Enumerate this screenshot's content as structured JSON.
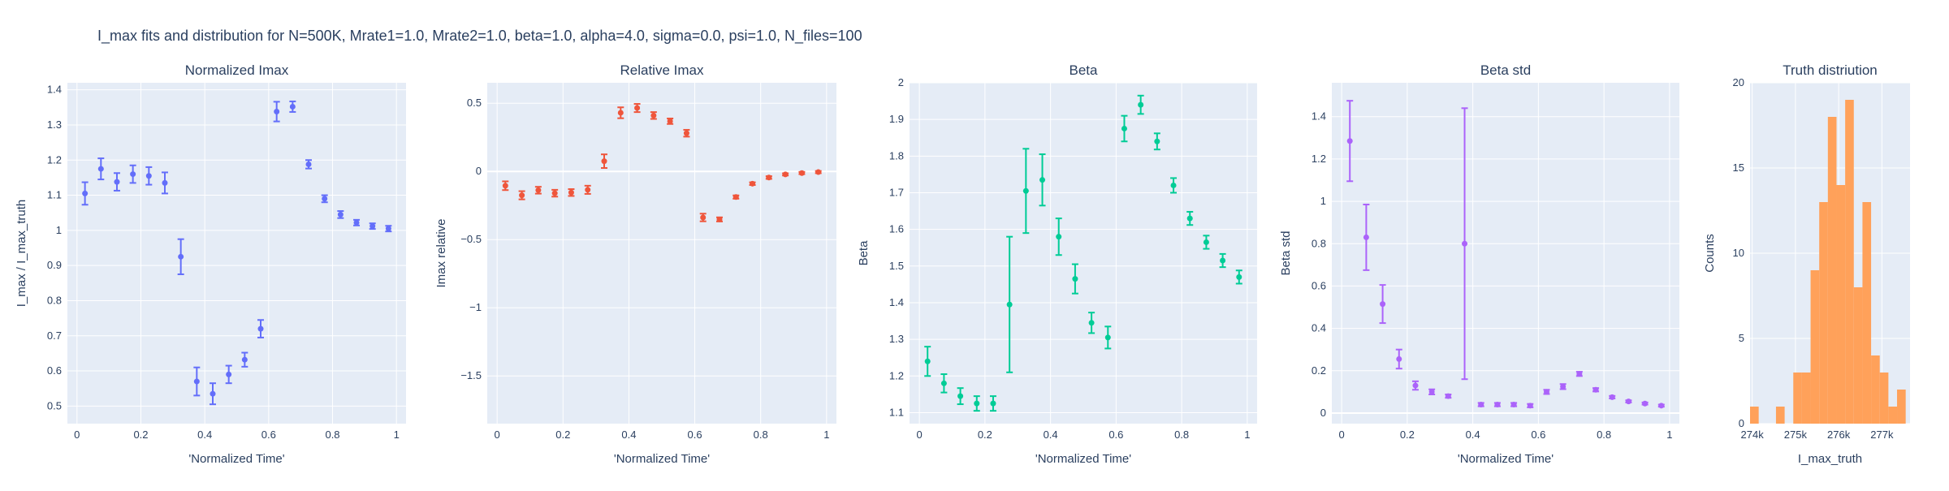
{
  "figure": {
    "title": "I_max fits and distribution for N=500K, Mrate1=1.0, Mrate2=1.0, beta=1.0, alpha=4.0, sigma=0.0,  psi=1.0, N_files=100"
  },
  "colors": {
    "plot_bg": "#e5ecf6",
    "grid": "#ffffff",
    "text": "#2a3f5f",
    "normalized": "#636efa",
    "relative": "#ef553b",
    "beta": "#00cc96",
    "beta_std": "#ab63fa",
    "hist": "#ffa15a"
  },
  "chart_data": [
    {
      "type": "scatter",
      "title": "Normalized Imax",
      "xlabel": "'Normalized Time'",
      "ylabel": "I_max / I_max_truth",
      "xlim": [
        -0.03,
        1.03
      ],
      "ylim": [
        0.45,
        1.42
      ],
      "xticks": [
        0,
        0.2,
        0.4,
        0.6,
        0.8,
        1
      ],
      "xtick_labels": [
        "0",
        "0.2",
        "0.4",
        "0.6",
        "0.8",
        "1"
      ],
      "yticks": [
        0.5,
        0.6,
        0.7,
        0.8,
        0.9,
        1,
        1.1,
        1.2,
        1.3,
        1.4
      ],
      "ytick_labels": [
        "0.5",
        "0.6",
        "0.7",
        "0.8",
        "0.9",
        "1",
        "1.1",
        "1.2",
        "1.3",
        "1.4"
      ],
      "grid": true,
      "color_key": "normalized",
      "x": [
        0.025,
        0.075,
        0.125,
        0.175,
        0.225,
        0.275,
        0.325,
        0.375,
        0.425,
        0.475,
        0.525,
        0.575,
        0.625,
        0.675,
        0.725,
        0.775,
        0.825,
        0.875,
        0.925,
        0.975
      ],
      "y": [
        1.105,
        1.175,
        1.138,
        1.16,
        1.155,
        1.135,
        0.925,
        0.57,
        0.535,
        0.59,
        0.632,
        0.72,
        1.338,
        1.352,
        1.188,
        1.09,
        1.045,
        1.022,
        1.012,
        1.005
      ],
      "err": [
        0.032,
        0.03,
        0.025,
        0.025,
        0.025,
        0.03,
        0.05,
        0.04,
        0.03,
        0.025,
        0.02,
        0.025,
        0.028,
        0.015,
        0.012,
        0.01,
        0.01,
        0.008,
        0.008,
        0.008
      ]
    },
    {
      "type": "scatter",
      "title": "Relative Imax",
      "xlabel": "'Normalized Time'",
      "ylabel": "Imax relative",
      "xlim": [
        -0.03,
        1.03
      ],
      "ylim": [
        -1.85,
        0.65
      ],
      "xticks": [
        0,
        0.2,
        0.4,
        0.6,
        0.8,
        1
      ],
      "xtick_labels": [
        "0",
        "0.2",
        "0.4",
        "0.6",
        "0.8",
        "1"
      ],
      "yticks": [
        -1.5,
        -1,
        -0.5,
        0,
        0.5
      ],
      "ytick_labels": [
        "−1.5",
        "−1",
        "−0.5",
        "0",
        "0.5"
      ],
      "grid": true,
      "color_key": "relative",
      "x": [
        0.025,
        0.075,
        0.125,
        0.175,
        0.225,
        0.275,
        0.325,
        0.375,
        0.425,
        0.475,
        0.525,
        0.575,
        0.625,
        0.675,
        0.725,
        0.775,
        0.825,
        0.875,
        0.925,
        0.975
      ],
      "y": [
        -0.105,
        -0.175,
        -0.138,
        -0.16,
        -0.155,
        -0.135,
        0.075,
        0.43,
        0.465,
        0.41,
        0.368,
        0.28,
        -0.338,
        -0.352,
        -0.188,
        -0.09,
        -0.045,
        -0.022,
        -0.012,
        -0.005
      ],
      "err": [
        0.032,
        0.03,
        0.025,
        0.025,
        0.025,
        0.03,
        0.05,
        0.04,
        0.03,
        0.025,
        0.02,
        0.025,
        0.028,
        0.015,
        0.012,
        0.01,
        0.01,
        0.008,
        0.008,
        0.008
      ]
    },
    {
      "type": "scatter",
      "title": "Beta",
      "xlabel": "'Normalized Time'",
      "ylabel": "Beta",
      "xlim": [
        -0.03,
        1.03
      ],
      "ylim": [
        1.07,
        2.0
      ],
      "xticks": [
        0,
        0.2,
        0.4,
        0.6,
        0.8,
        1
      ],
      "xtick_labels": [
        "0",
        "0.2",
        "0.4",
        "0.6",
        "0.8",
        "1"
      ],
      "yticks": [
        1.1,
        1.2,
        1.3,
        1.4,
        1.5,
        1.6,
        1.7,
        1.8,
        1.9,
        2
      ],
      "ytick_labels": [
        "1.1",
        "1.2",
        "1.3",
        "1.4",
        "1.5",
        "1.6",
        "1.7",
        "1.8",
        "1.9",
        "2"
      ],
      "grid": true,
      "color_key": "beta",
      "x": [
        0.025,
        0.075,
        0.125,
        0.175,
        0.225,
        0.275,
        0.325,
        0.375,
        0.425,
        0.475,
        0.525,
        0.575,
        0.625,
        0.675,
        0.725,
        0.775,
        0.825,
        0.875,
        0.925,
        0.975
      ],
      "y": [
        1.24,
        1.18,
        1.145,
        1.125,
        1.125,
        1.395,
        1.705,
        1.735,
        1.58,
        1.465,
        1.345,
        1.305,
        1.875,
        1.94,
        1.84,
        1.72,
        1.63,
        1.565,
        1.515,
        1.47
      ],
      "err": [
        0.04,
        0.025,
        0.022,
        0.02,
        0.02,
        0.185,
        0.115,
        0.07,
        0.05,
        0.04,
        0.028,
        0.03,
        0.035,
        0.025,
        0.022,
        0.02,
        0.018,
        0.018,
        0.018,
        0.018
      ]
    },
    {
      "type": "scatter",
      "title": "Beta std",
      "xlabel": "'Normalized Time'",
      "ylabel": "Beta std",
      "xlim": [
        -0.03,
        1.03
      ],
      "ylim": [
        -0.05,
        1.56
      ],
      "xticks": [
        0,
        0.2,
        0.4,
        0.6,
        0.8,
        1
      ],
      "xtick_labels": [
        "0",
        "0.2",
        "0.4",
        "0.6",
        "0.8",
        "1"
      ],
      "yticks": [
        0,
        0.2,
        0.4,
        0.6,
        0.8,
        1,
        1.2,
        1.4
      ],
      "ytick_labels": [
        "0",
        "0.2",
        "0.4",
        "0.6",
        "0.8",
        "1",
        "1.2",
        "1.4"
      ],
      "grid": true,
      "color_key": "beta_std",
      "x": [
        0.025,
        0.075,
        0.125,
        0.175,
        0.225,
        0.275,
        0.325,
        0.375,
        0.425,
        0.475,
        0.525,
        0.575,
        0.625,
        0.675,
        0.725,
        0.775,
        0.825,
        0.875,
        0.925,
        0.975
      ],
      "y": [
        1.285,
        0.83,
        0.515,
        0.255,
        0.13,
        0.1,
        0.08,
        0.8,
        0.04,
        0.04,
        0.04,
        0.035,
        0.1,
        0.125,
        0.185,
        0.11,
        0.075,
        0.055,
        0.045,
        0.035
      ],
      "err": [
        0.19,
        0.155,
        0.09,
        0.045,
        0.02,
        0.012,
        0.008,
        0.64,
        0.008,
        0.008,
        0.008,
        0.008,
        0.01,
        0.012,
        0.01,
        0.008,
        0.006,
        0.005,
        0.005,
        0.005
      ]
    },
    {
      "type": "bar",
      "title": "Truth distriution",
      "xlabel": "I_max_truth",
      "ylabel": "Counts",
      "xlim": [
        273950,
        277650
      ],
      "ylim": [
        0,
        20
      ],
      "xticks": [
        274000,
        275000,
        276000,
        277000
      ],
      "xtick_labels": [
        "274k",
        "275k",
        "276k",
        "277k"
      ],
      "yticks": [
        0,
        5,
        10,
        15,
        20
      ],
      "ytick_labels": [
        "0",
        "5",
        "10",
        "15",
        "20"
      ],
      "grid": true,
      "color_key": "hist",
      "bin_edges": [
        273950,
        274150,
        274350,
        274550,
        274750,
        274950,
        275150,
        275350,
        275550,
        275750,
        275950,
        276150,
        276350,
        276550,
        276750,
        276950,
        277150,
        277350,
        277550,
        277750
      ],
      "counts": [
        1,
        0,
        0,
        1,
        0,
        3,
        3,
        9,
        13,
        18,
        14,
        19,
        8,
        13,
        4,
        3,
        1,
        2,
        0
      ]
    }
  ]
}
